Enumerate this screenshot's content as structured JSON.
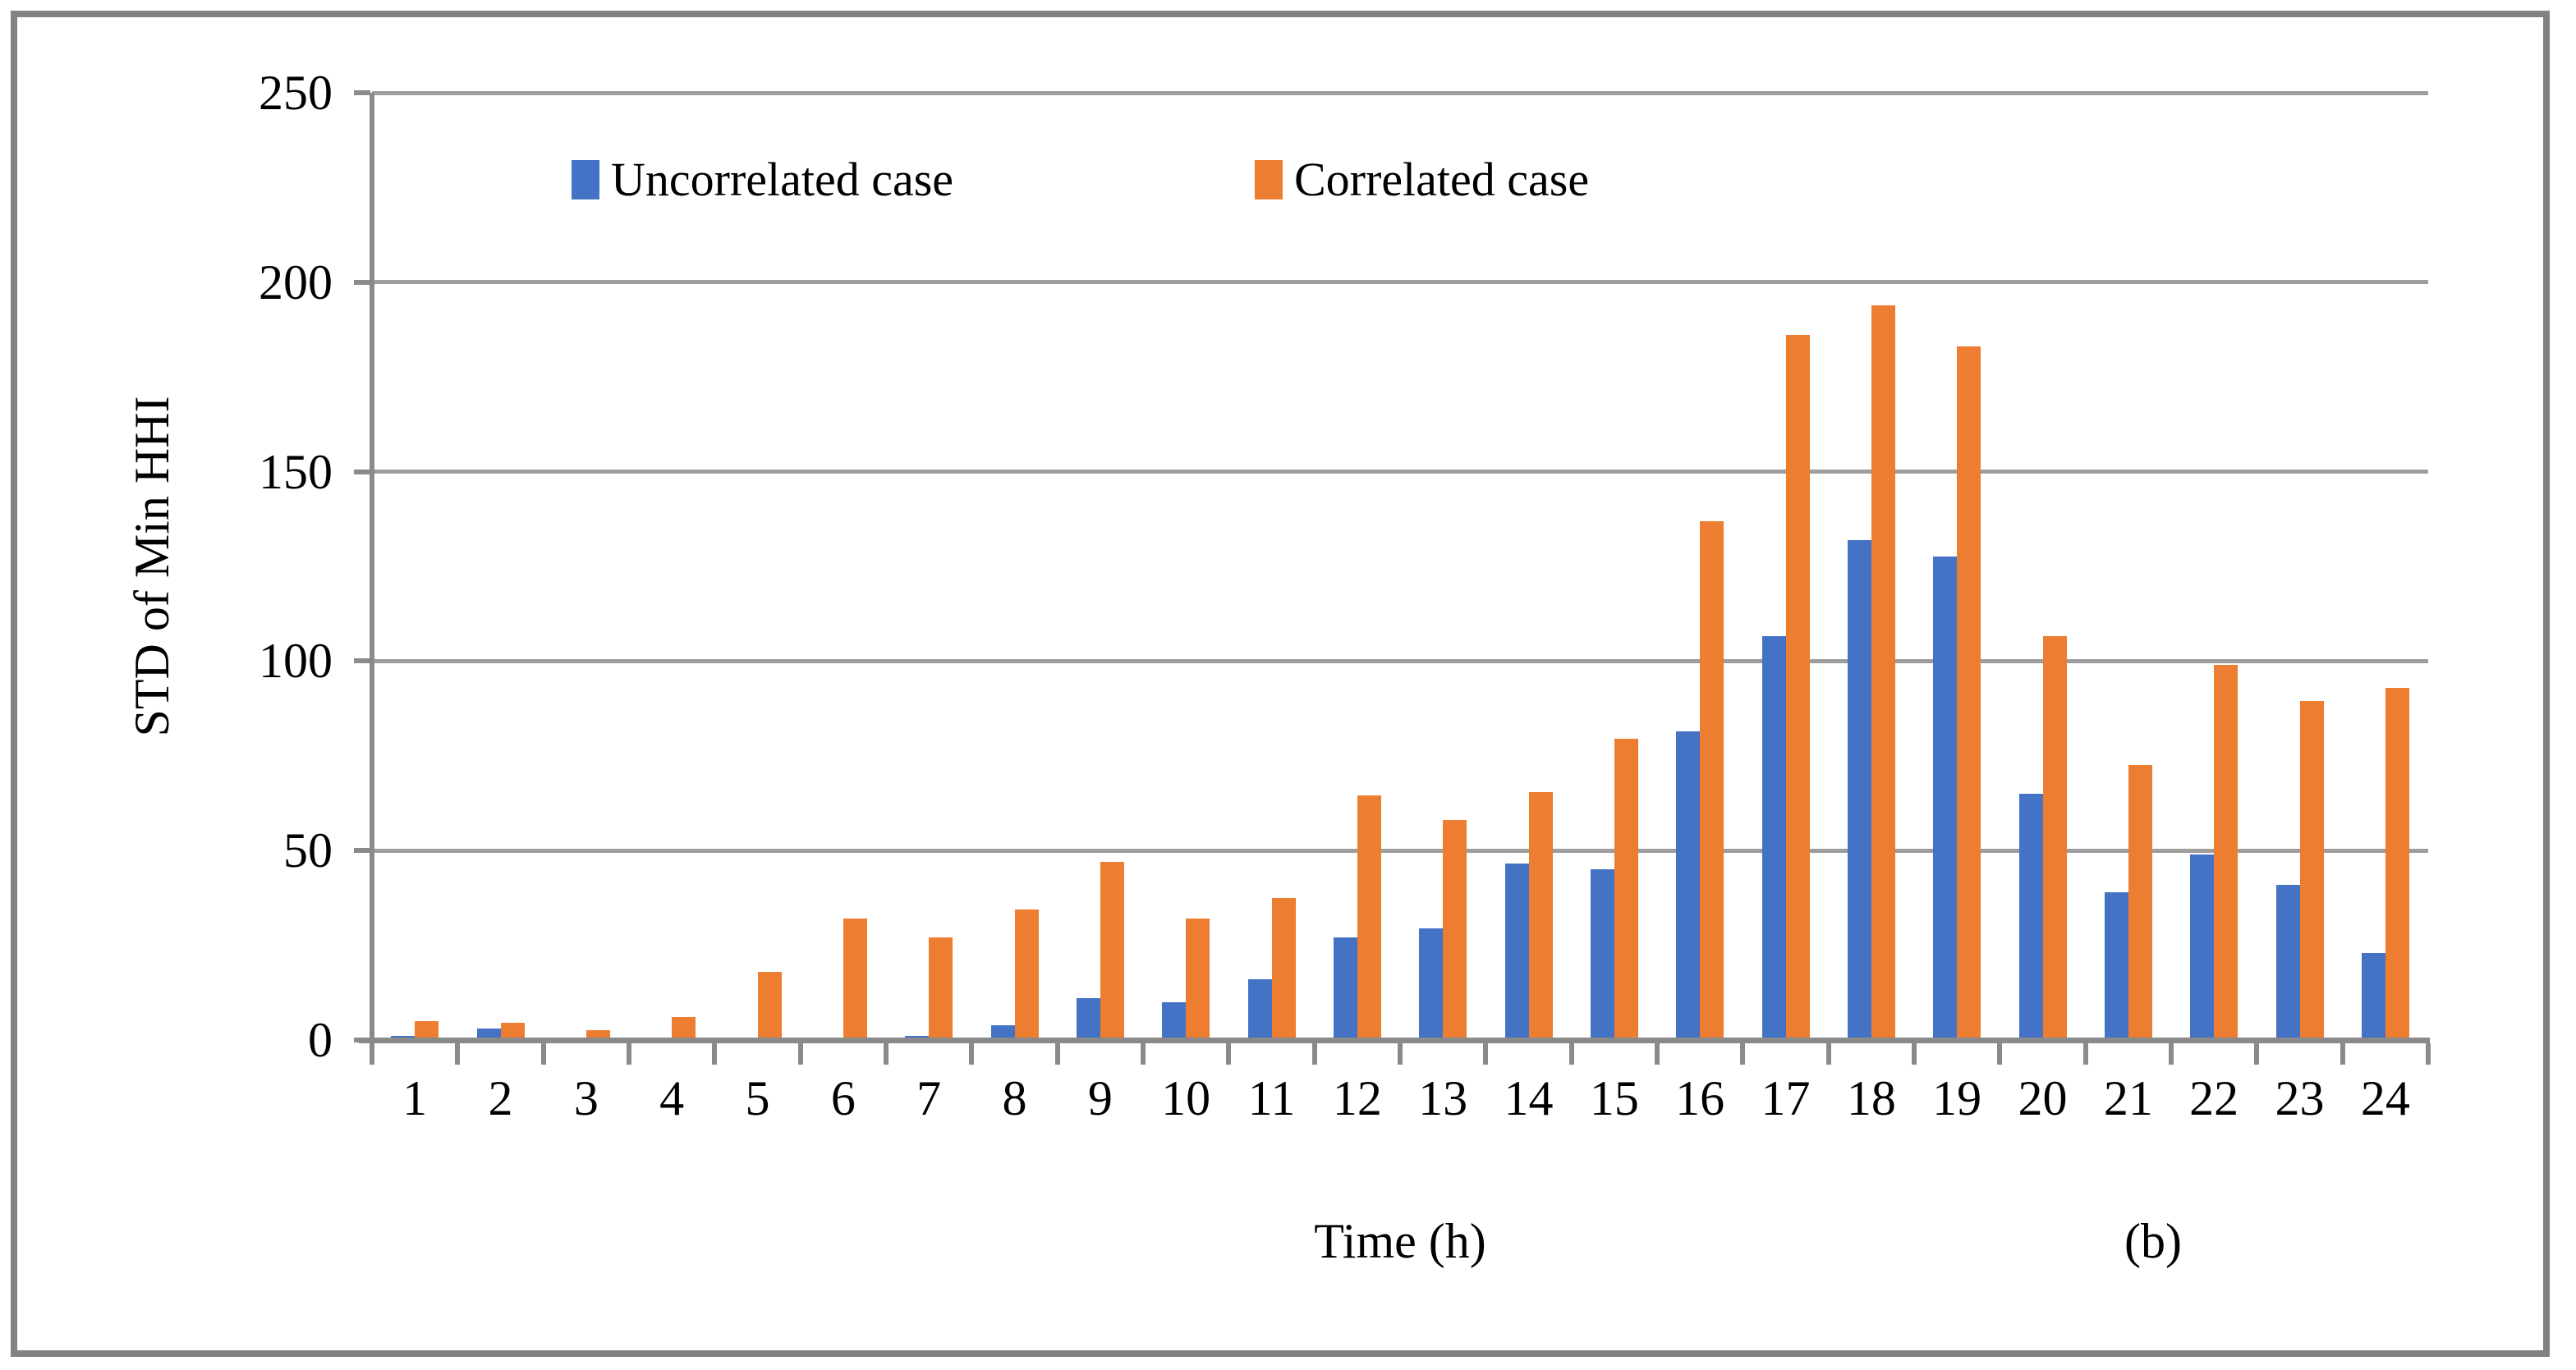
{
  "figure": {
    "sublabel": "(b)"
  },
  "legend": [
    {
      "label": "Uncorrelated case",
      "color": "#4472C4"
    },
    {
      "label": "Correlated case",
      "color": "#ED7D31"
    }
  ],
  "chart_data": {
    "type": "bar",
    "title": "",
    "xlabel": "Time (h)",
    "ylabel": "STD of Min HHI",
    "ylim": [
      0,
      250
    ],
    "yticks": [
      0,
      50,
      100,
      150,
      200,
      250
    ],
    "grid": true,
    "legend_position": "top-inside",
    "categories": [
      1,
      2,
      3,
      4,
      5,
      6,
      7,
      8,
      9,
      10,
      11,
      12,
      13,
      14,
      15,
      16,
      17,
      18,
      19,
      20,
      21,
      22,
      23,
      24
    ],
    "series": [
      {
        "name": "Uncorrelated case",
        "color": "#4472C4",
        "values": [
          1,
          3,
          0,
          0,
          0,
          0.5,
          1,
          4,
          11,
          10,
          16,
          27,
          29.5,
          46.5,
          45,
          81.5,
          106.5,
          132,
          127.5,
          65,
          39,
          49,
          41,
          23
        ]
      },
      {
        "name": "Correlated case",
        "color": "#ED7D31",
        "values": [
          5,
          4.5,
          2.5,
          6,
          18,
          32,
          27,
          34.5,
          47,
          32,
          37.5,
          64.5,
          58,
          65.5,
          79.5,
          137,
          186,
          194,
          183,
          106.5,
          72.5,
          99,
          89.5,
          93
        ]
      }
    ]
  }
}
